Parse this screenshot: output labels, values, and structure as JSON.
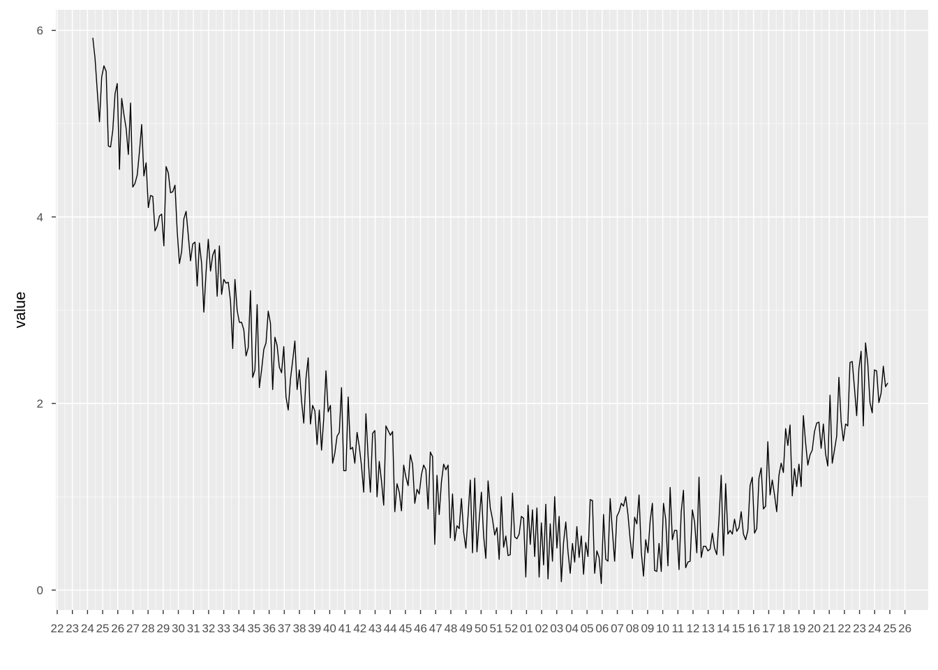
{
  "chart_data": {
    "type": "line",
    "title": "",
    "xlabel": "",
    "ylabel": "value",
    "ylim": [
      -0.2,
      6.2
    ],
    "y_ticks": [
      0,
      2,
      4,
      6
    ],
    "y_tick_labels": [
      "0",
      "2",
      "4",
      "6"
    ],
    "x_tick_labels": [
      "22",
      "23",
      "24",
      "25",
      "26",
      "27",
      "28",
      "29",
      "30",
      "31",
      "32",
      "33",
      "34",
      "35",
      "36",
      "37",
      "38",
      "39",
      "40",
      "41",
      "42",
      "43",
      "44",
      "45",
      "46",
      "47",
      "48",
      "49",
      "50",
      "51",
      "52",
      "01",
      "02",
      "03",
      "04",
      "05",
      "06",
      "07",
      "08",
      "09",
      "10",
      "11",
      "12",
      "13",
      "14",
      "15",
      "16",
      "17",
      "18",
      "19",
      "20",
      "21",
      "22",
      "23",
      "24",
      "25",
      "26"
    ],
    "series": [
      {
        "color": "#000000",
        "values": [
          5.92,
          5.7,
          5.35,
          5.02,
          5.5,
          5.62,
          5.56,
          4.76,
          4.75,
          4.93,
          5.32,
          5.43,
          4.51,
          5.27,
          5.1,
          4.95,
          4.67,
          5.22,
          4.32,
          4.36,
          4.45,
          4.7,
          4.99,
          4.44,
          4.58,
          4.1,
          4.23,
          4.22,
          3.85,
          3.9,
          4.01,
          4.03,
          3.69,
          4.54,
          4.47,
          4.26,
          4.27,
          4.34,
          3.85,
          3.5,
          3.63,
          3.98,
          4.06,
          3.8,
          3.53,
          3.71,
          3.73,
          3.26,
          3.72,
          3.5,
          2.98,
          3.41,
          3.76,
          3.42,
          3.59,
          3.65,
          3.15,
          3.69,
          3.17,
          3.33,
          3.29,
          3.3,
          3.1,
          2.59,
          3.33,
          3.0,
          2.87,
          2.87,
          2.79,
          2.51,
          2.6,
          3.21,
          2.28,
          2.36,
          3.06,
          2.17,
          2.36,
          2.58,
          2.65,
          2.99,
          2.86,
          2.15,
          2.71,
          2.62,
          2.39,
          2.33,
          2.61,
          2.07,
          1.93,
          2.26,
          2.46,
          2.67,
          2.15,
          2.36,
          2.03,
          1.79,
          2.27,
          2.49,
          1.78,
          1.98,
          1.92,
          1.56,
          1.93,
          1.5,
          1.84,
          2.35,
          1.91,
          1.98,
          1.36,
          1.47,
          1.65,
          1.69,
          2.17,
          1.28,
          1.28,
          2.07,
          1.51,
          1.53,
          1.36,
          1.69,
          1.54,
          1.33,
          1.05,
          1.89,
          1.42,
          1.05,
          1.68,
          1.71,
          1.0,
          1.38,
          1.17,
          0.91,
          1.76,
          1.71,
          1.66,
          1.7,
          0.84,
          1.14,
          1.05,
          0.85,
          1.34,
          1.21,
          1.12,
          1.45,
          1.35,
          0.93,
          1.08,
          1.03,
          1.24,
          1.34,
          1.29,
          0.87,
          1.48,
          1.43,
          0.49,
          1.23,
          0.81,
          1.16,
          1.35,
          1.29,
          1.34,
          0.56,
          1.03,
          0.53,
          0.69,
          0.66,
          0.98,
          0.62,
          0.45,
          0.8,
          1.18,
          0.4,
          1.2,
          0.41,
          0.75,
          1.05,
          0.58,
          0.34,
          1.17,
          0.88,
          0.76,
          0.59,
          0.67,
          0.33,
          1.0,
          0.46,
          0.58,
          0.37,
          0.38,
          1.04,
          0.57,
          0.55,
          0.6,
          0.79,
          0.77,
          0.14,
          0.91,
          0.49,
          0.86,
          0.36,
          0.88,
          0.14,
          0.72,
          0.27,
          0.92,
          0.12,
          0.71,
          0.31,
          1.0,
          0.45,
          0.79,
          0.09,
          0.51,
          0.73,
          0.41,
          0.18,
          0.5,
          0.3,
          0.68,
          0.35,
          0.58,
          0.17,
          0.51,
          0.36,
          0.97,
          0.96,
          0.18,
          0.42,
          0.35,
          0.07,
          0.81,
          0.33,
          0.31,
          0.98,
          0.63,
          0.31,
          0.79,
          0.84,
          0.93,
          0.9,
          1.0,
          0.81,
          0.54,
          0.34,
          0.78,
          0.71,
          1.02,
          0.41,
          0.15,
          0.54,
          0.4,
          0.74,
          0.93,
          0.21,
          0.2,
          0.5,
          0.2,
          0.93,
          0.76,
          0.26,
          1.1,
          0.54,
          0.64,
          0.64,
          0.22,
          0.84,
          1.07,
          0.24,
          0.3,
          0.31,
          0.86,
          0.73,
          0.4,
          1.21,
          0.35,
          0.47,
          0.47,
          0.42,
          0.44,
          0.61,
          0.45,
          0.38,
          0.76,
          1.23,
          0.37,
          1.14,
          0.6,
          0.64,
          0.6,
          0.76,
          0.63,
          0.67,
          0.84,
          0.6,
          0.54,
          0.64,
          1.12,
          1.21,
          0.61,
          0.66,
          1.2,
          1.31,
          0.87,
          0.9,
          1.59,
          1.02,
          1.18,
          1.02,
          0.84,
          1.23,
          1.36,
          1.26,
          1.73,
          1.55,
          1.77,
          1.01,
          1.3,
          1.11,
          1.35,
          1.11,
          1.87,
          1.58,
          1.34,
          1.45,
          1.5,
          1.7,
          1.79,
          1.8,
          1.52,
          1.78,
          1.46,
          1.33,
          2.09,
          1.36,
          1.5,
          1.65,
          2.28,
          1.81,
          1.6,
          1.78,
          1.76,
          2.44,
          2.45,
          2.17,
          1.87,
          2.37,
          2.56,
          1.76,
          2.65,
          2.43,
          2.01,
          1.9,
          2.36,
          2.35,
          2.01,
          2.11,
          2.4,
          2.18,
          2.22
        ]
      }
    ]
  }
}
